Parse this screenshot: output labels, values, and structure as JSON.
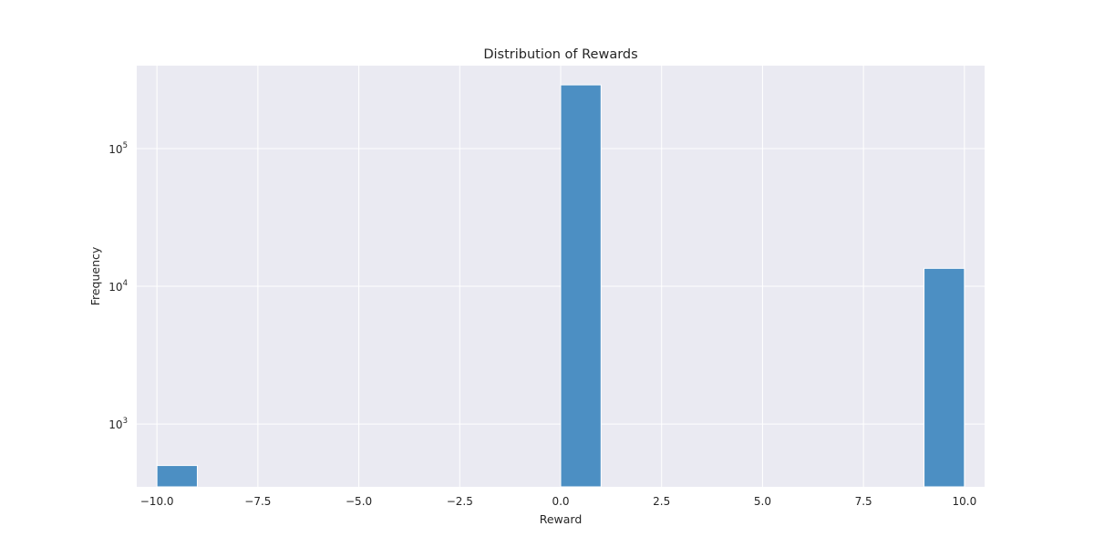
{
  "chart_data": {
    "type": "bar",
    "title": "Distribution of Rewards",
    "xlabel": "Reward",
    "ylabel": "Frequency",
    "y_scale": "log",
    "xlim": [
      -10.5,
      10.5
    ],
    "ylim": [
      350,
      400000
    ],
    "grid": true,
    "legend": "none",
    "x_ticks": [
      -10.0,
      -7.5,
      -5.0,
      -2.5,
      0.0,
      2.5,
      5.0,
      7.5,
      10.0
    ],
    "x_tick_labels": [
      "−10.0",
      "−7.5",
      "−5.0",
      "−2.5",
      "0.0",
      "2.5",
      "5.0",
      "7.5",
      "10.0"
    ],
    "y_ticks": [
      {
        "value": 1000,
        "base": "10",
        "exp": "3"
      },
      {
        "value": 10000,
        "base": "10",
        "exp": "4"
      },
      {
        "value": 100000,
        "base": "10",
        "exp": "5"
      }
    ],
    "bins": [
      {
        "x_start": -10.0,
        "x_end": -9.0,
        "count": 500
      },
      {
        "x_start": 0.0,
        "x_end": 1.0,
        "count": 290000
      },
      {
        "x_start": 9.0,
        "x_end": 10.0,
        "count": 13500
      }
    ],
    "colors": {
      "bar_fill": "#4c8fc3",
      "bar_edge": "#ffffff",
      "plot_background": "#eaeaf2",
      "grid": "#ffffff"
    }
  }
}
